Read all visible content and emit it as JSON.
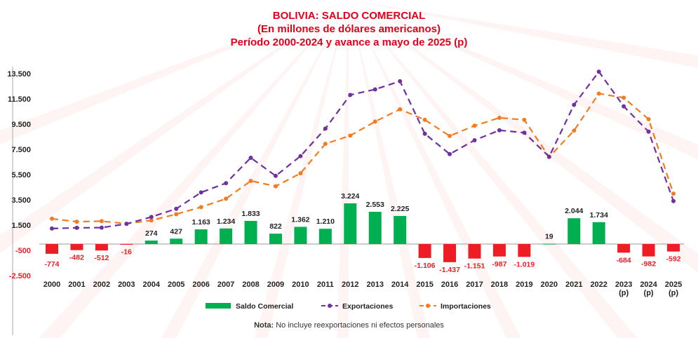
{
  "chart_data": {
    "type": "bar+line",
    "title": [
      "BOLIVIA: SALDO COMERCIAL",
      "(En millones de dólares americanos)",
      "Período 2000-2024 y avance a mayo de 2025 (p)"
    ],
    "categories": [
      "2000",
      "2001",
      "2002",
      "2003",
      "2004",
      "2005",
      "2006",
      "2007",
      "2008",
      "2009",
      "2010",
      "2011",
      "2012",
      "2013",
      "2014",
      "2015",
      "2016",
      "2017",
      "2018",
      "2019",
      "2020",
      "2021",
      "2022",
      "2023\n(p)",
      "2024\n(p)",
      "2025\n(p)"
    ],
    "ylim": [
      -2500,
      13500
    ],
    "yticks": [
      13500,
      11500,
      9500,
      7500,
      5500,
      3500,
      1500,
      -500,
      -2500
    ],
    "ytick_labels": [
      "13.500",
      "11.500",
      "9.500",
      "7.500",
      "5.500",
      "3.500",
      "1.500",
      "-500",
      "-2.500"
    ],
    "series": [
      {
        "name": "Saldo Comercial",
        "type": "bar",
        "color": "#00b050",
        "neg_color": "#ee1c25",
        "values": [
          -774,
          -482,
          -512,
          -16,
          274,
          427,
          1163,
          1234,
          1833,
          822,
          1362,
          1210,
          3224,
          2553,
          2225,
          -1106,
          -1437,
          -1151,
          -987,
          -1019,
          19,
          2044,
          1734,
          -684,
          -982,
          -592
        ],
        "labels": [
          "-774",
          "-482",
          "-512",
          "-16",
          "274",
          "427",
          "1.163",
          "1.234",
          "1.833",
          "822",
          "1.362",
          "1.210",
          "3.224",
          "2.553",
          "2.225",
          "-1.106",
          "-1.437",
          "-1.151",
          "-987",
          "-1.019",
          "19",
          "2.044",
          "1.734",
          "-684",
          "-982",
          "-592"
        ]
      },
      {
        "name": "Exportaciones",
        "type": "line",
        "color": "#7030a0",
        "values": [
          1230,
          1285,
          1299,
          1598,
          2146,
          2791,
          4088,
          4822,
          6836,
          5400,
          6966,
          9146,
          11815,
          12251,
          12899,
          8737,
          7126,
          8223,
          9015,
          8819,
          6915,
          11030,
          13653,
          10907,
          8905,
          3400
        ]
      },
      {
        "name": "Importaciones",
        "type": "line",
        "color": "#f47b20",
        "values": [
          2004,
          1767,
          1811,
          1614,
          1872,
          2364,
          2925,
          3588,
          5003,
          4578,
          5604,
          7936,
          8590,
          9699,
          10674,
          9843,
          8563,
          9374,
          10002,
          9838,
          6896,
          8986,
          11919,
          11591,
          9887,
          3992
        ]
      }
    ],
    "legend": "bottom",
    "grid": false
  },
  "note": {
    "label": "Nota:",
    "text": "No incluye reexportaciones ni efectos personales"
  }
}
